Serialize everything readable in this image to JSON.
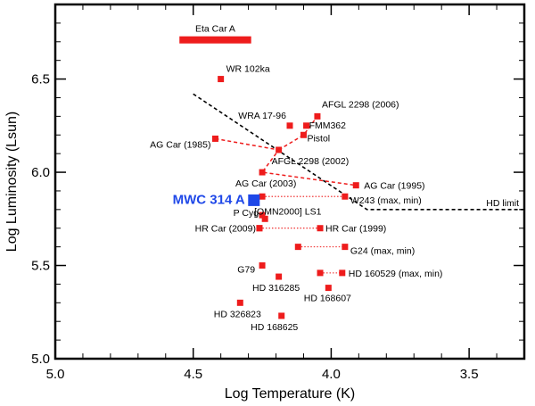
{
  "chart_data": {
    "type": "scatter",
    "title": "",
    "xlabel": "Log Temperature (K)",
    "ylabel": "Log Luminosity (Lsun)",
    "xlim": [
      5.0,
      3.3
    ],
    "ylim": [
      5.0,
      6.9
    ],
    "xticks": [
      5.0,
      4.5,
      4.0,
      3.5
    ],
    "xtick_labels": [
      "5.0",
      "4.5",
      "4.0",
      "3.5"
    ],
    "yticks": [
      5.0,
      5.5,
      6.0,
      6.5
    ],
    "ytick_labels": [
      "5.0",
      "5.5",
      "6.0",
      "6.5"
    ],
    "points": [
      {
        "name": "WR 102ka",
        "x": 4.4,
        "y": 6.5
      },
      {
        "name": "WRA 17-96",
        "x": 4.15,
        "y": 6.25
      },
      {
        "name": "FMM362",
        "x": 4.09,
        "y": 6.25
      },
      {
        "name": "AFGL 2298 (2006)",
        "x": 4.05,
        "y": 6.3
      },
      {
        "name": "Pistol",
        "x": 4.1,
        "y": 6.2
      },
      {
        "name": "AG Car (1985)",
        "x": 4.42,
        "y": 6.18
      },
      {
        "name": "AFGL 2298 (2002)",
        "x": 4.19,
        "y": 6.12
      },
      {
        "name": "AG Car (2003)",
        "x": 4.25,
        "y": 6.0
      },
      {
        "name": "AG Car (1995)",
        "x": 3.91,
        "y": 5.93
      },
      {
        "name": "W243 (max, min)",
        "x": 3.95,
        "y": 5.87
      },
      {
        "name": "P Cyg",
        "x": 4.25,
        "y": 5.77
      },
      {
        "name": "[OMN2000] LS1",
        "x": 4.24,
        "y": 5.75
      },
      {
        "name": "HR Car (2009)",
        "x": 4.26,
        "y": 5.7
      },
      {
        "name": "HR Car (1999)",
        "x": 4.04,
        "y": 5.7
      },
      {
        "name": "G24 (max, min)",
        "x": 3.95,
        "y": 5.6
      },
      {
        "name": "G79",
        "x": 4.25,
        "y": 5.5
      },
      {
        "name": "HD 160529 (max, min)",
        "x": 3.96,
        "y": 5.46
      },
      {
        "name": "HD 316285",
        "x": 4.19,
        "y": 5.44
      },
      {
        "name": "HD 168607",
        "x": 4.01,
        "y": 5.38
      },
      {
        "name": "HD 326823",
        "x": 4.33,
        "y": 5.3
      },
      {
        "name": "HD 168625",
        "x": 4.18,
        "y": 5.23
      }
    ],
    "connections": [
      {
        "name": "AG Car track",
        "style": "dashed",
        "points": [
          [
            4.42,
            6.18
          ],
          [
            4.19,
            6.12
          ],
          [
            4.25,
            6.0
          ],
          [
            3.91,
            5.93
          ]
        ]
      },
      {
        "name": "AFGL 2298 track",
        "style": "dashed",
        "points": [
          [
            4.19,
            6.12
          ],
          [
            4.1,
            6.2
          ],
          [
            4.05,
            6.3
          ]
        ]
      },
      {
        "name": "W243 range",
        "style": "dotted",
        "points": [
          [
            4.25,
            5.87
          ],
          [
            3.95,
            5.87
          ]
        ]
      },
      {
        "name": "HR Car range",
        "style": "dotted",
        "points": [
          [
            4.26,
            5.7
          ],
          [
            4.04,
            5.7
          ]
        ]
      },
      {
        "name": "G24 range",
        "style": "dotted",
        "points": [
          [
            4.12,
            5.6
          ],
          [
            3.95,
            5.6
          ]
        ]
      },
      {
        "name": "HD 160529 range",
        "style": "dotted",
        "points": [
          [
            4.04,
            5.46
          ],
          [
            3.96,
            5.46
          ]
        ]
      }
    ],
    "highlight": {
      "name": "MWC 314 A",
      "x": 4.28,
      "y": 5.85
    },
    "eta_car": {
      "name": "Eta Car A",
      "x_range": [
        4.55,
        4.29
      ],
      "y": 6.71
    },
    "hd_limit": {
      "label": "HD limit",
      "points": [
        [
          4.5,
          6.42
        ],
        [
          3.87,
          5.8
        ],
        [
          3.3,
          5.8
        ]
      ]
    },
    "colors": {
      "marker": "#ee1c1c",
      "highlight": "#1f48e8",
      "axes": "#000000"
    }
  }
}
